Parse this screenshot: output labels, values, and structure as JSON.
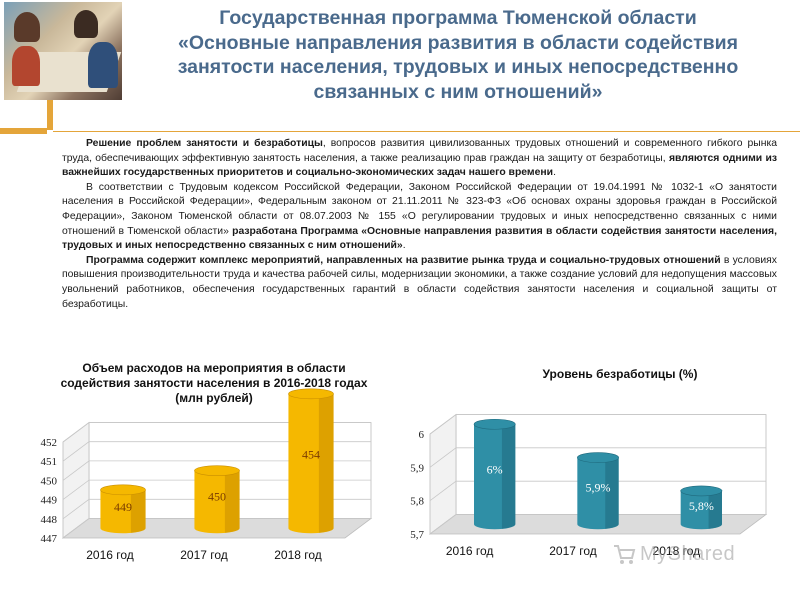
{
  "title_lines": [
    "Государственная программа Тюменской области",
    "«Основные направления развития в области содействия",
    "занятости населения, трудовых и иных непосредственно",
    "связанных с ним отношений»"
  ],
  "paragraph1": {
    "b1": "Решение проблем занятости и безработицы",
    "t1": ", вопросов развития цивилизованных трудовых отношений и современного гибкого рынка труда, обеспечивающих эффективную занятость населения, а также реализацию прав граждан на защиту от безработицы, ",
    "b2": "являются одними из важнейших государственных приоритетов и социально-экономических задач нашего времени",
    "t2": "."
  },
  "paragraph2": {
    "t1": "В соответствии с Трудовым кодексом Российской Федерации, Законом Российской Федерации от 19.04.1991 № 1032-1 «О занятости населения в Российской Федерации», Федеральным законом  от 21.11.2011 № 323-ФЗ «Об основах охраны здоровья граждан в Российской Федерации», Законом Тюменской области от 08.07.2003 № 155 «О регулировании трудовых и иных непосредственно связанных с ними отношений в Тюменской области» ",
    "b1": "разработана Программа «Основные направления развития в области содействия занятости населения, трудовых и иных непосредственно связанных с ним отношений»",
    "t2": "."
  },
  "paragraph3": {
    "b1": "Программа содержит комплекс мероприятий, направленных на развитие рынка труда и социально-трудовых отношений",
    "t1": "  в условиях повышения производительности труда и качества рабочей силы, модернизации экономики, а также создание условий для недопущения массовых увольнений работников, обеспечения государственных гарантий в области содействия занятости населения и социальной защиты от безработицы."
  },
  "chart_data": [
    {
      "type": "bar",
      "title": "Объем расходов на мероприятия в области содействия занятости населения в 2016-2018 годах (млн рублей)",
      "categories": [
        "2016 год",
        "2017 год",
        "2018 год"
      ],
      "values": [
        449,
        450,
        454
      ],
      "data_labels": [
        "449",
        "450",
        "454"
      ],
      "y_ticks": [
        "447",
        "448",
        "449",
        "450",
        "451",
        "452"
      ],
      "ylim": [
        447,
        452
      ],
      "grid": true,
      "legend": "none",
      "colors": {
        "bar": "#f5b800",
        "bar_dark": "#c98e00",
        "label": "#7a3b00"
      }
    },
    {
      "type": "bar",
      "title": "Уровень безработицы (%)",
      "categories": [
        "2016 год",
        "2017 год",
        "2018 год"
      ],
      "values": [
        6.0,
        5.9,
        5.8
      ],
      "data_labels": [
        "6%",
        "5,9%",
        "5,8%"
      ],
      "y_ticks": [
        "5,7",
        "5,8",
        "5,9",
        "6"
      ],
      "ylim": [
        5.7,
        6.0
      ],
      "grid": true,
      "legend": "none",
      "colors": {
        "bar": "#2f8fa6",
        "bar_dark": "#1f6a7e",
        "label": "#ffffff"
      }
    }
  ],
  "watermark": {
    "text": "MyShared"
  }
}
